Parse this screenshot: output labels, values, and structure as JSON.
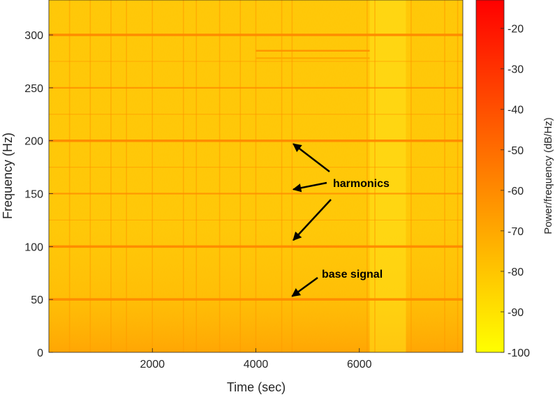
{
  "chart_data": {
    "type": "heatmap",
    "xlabel": "Time (sec)",
    "ylabel": "Frequency (Hz)",
    "xlim": [
      0,
      8000
    ],
    "ylim": [
      0,
      333
    ],
    "x_ticks": [
      2000,
      4000,
      6000
    ],
    "x_tick_labels": [
      "2000",
      "4000",
      "6000"
    ],
    "y_ticks": [
      0,
      50,
      100,
      150,
      200,
      250,
      300
    ],
    "y_tick_labels": [
      "0",
      "50",
      "100",
      "150",
      "200",
      "250",
      "300"
    ],
    "colorbar": {
      "label": "Power/frequency (dB/Hz)",
      "range": [
        -100,
        -13
      ],
      "ticks": [
        -100,
        -90,
        -80,
        -70,
        -60,
        -50,
        -40,
        -30,
        -20
      ],
      "tick_labels": [
        "-100",
        "-90",
        "-80",
        "-70",
        "-60",
        "-50",
        "-40",
        "-30",
        "-20"
      ],
      "colormap": [
        "#ffff00",
        "#ffc000",
        "#ff8000",
        "#ff4000",
        "#ff0000"
      ]
    },
    "background_level_db": -87,
    "low_frequency_level_db": -72,
    "strong_lines_hz": [
      50,
      100,
      200,
      300
    ],
    "medium_lines_hz": [
      150,
      250
    ],
    "weak_lines_hz": [
      125,
      175,
      225,
      275
    ],
    "segment_lines": [
      {
        "freq": 285,
        "x_start": 4000,
        "x_end": 6200,
        "level_db": -62
      },
      {
        "freq": 278,
        "x_start": 4000,
        "x_end": 6200,
        "level_db": -70
      }
    ],
    "bright_region": {
      "x_start": 6200,
      "x_end": 6900
    },
    "vertical_streaks_sec": [
      400,
      800,
      1200,
      1500,
      2000,
      2600,
      2850,
      3300,
      3700,
      4000,
      4500,
      4700,
      6150,
      6300,
      7000,
      7650,
      7900
    ],
    "annotations": [
      {
        "text": "harmonics",
        "arrows_to": [
          {
            "x": 4750,
            "y": 197
          },
          {
            "x": 4750,
            "y": 154
          },
          {
            "x": 4750,
            "y": 106
          }
        ]
      },
      {
        "text": "base signal",
        "arrows_to": [
          {
            "x": 4700,
            "y": 53
          }
        ]
      }
    ]
  }
}
